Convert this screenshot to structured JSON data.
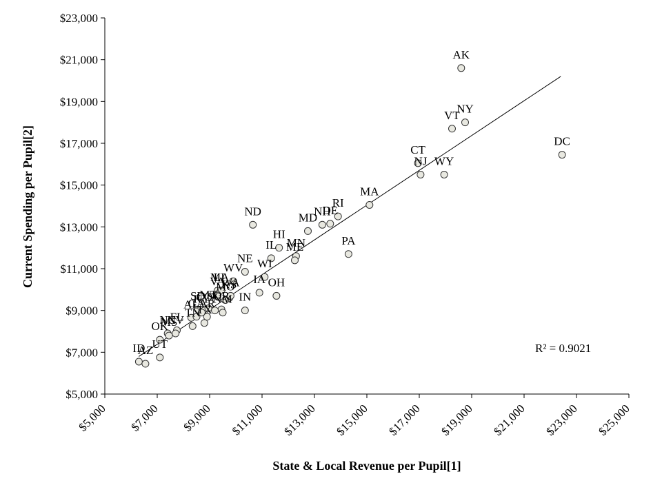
{
  "chart_data": {
    "type": "scatter",
    "title": "",
    "xlabel": "State & Local Revenue per Pupil[1]",
    "ylabel": "Current  Spending  per Pupil[2]",
    "xlim": [
      5000,
      25000
    ],
    "ylim": [
      5000,
      23000
    ],
    "x_ticks": [
      5000,
      7000,
      9000,
      11000,
      13000,
      15000,
      17000,
      19000,
      21000,
      23000,
      25000
    ],
    "x_tick_labels": [
      "$5,000",
      "$7,000",
      "$9,000",
      "$11,000",
      "$13,000",
      "$15,000",
      "$17,000",
      "$19,000",
      "$21,000",
      "$23,000",
      "$25,000"
    ],
    "y_ticks": [
      5000,
      7000,
      9000,
      11000,
      13000,
      15000,
      17000,
      19000,
      21000,
      23000
    ],
    "y_tick_labels": [
      "$5,000",
      "$7,000",
      "$9,000",
      "$11,000",
      "$13,000",
      "$15,000",
      "$17,000",
      "$19,000",
      "$21,000",
      "$23,000"
    ],
    "trendline": {
      "x": [
        6300,
        22400
      ],
      "y": [
        6800,
        20200
      ]
    },
    "r_squared_label": "R² = 0.9021",
    "points": [
      {
        "label": "AK",
        "x": 18600,
        "y": 20600
      },
      {
        "label": "NY",
        "x": 18750,
        "y": 18000
      },
      {
        "label": "VT",
        "x": 18250,
        "y": 17700
      },
      {
        "label": "DC",
        "x": 22450,
        "y": 16450
      },
      {
        "label": "CT",
        "x": 16950,
        "y": 16050
      },
      {
        "label": "NJ",
        "x": 17050,
        "y": 15500
      },
      {
        "label": "WY",
        "x": 17950,
        "y": 15500
      },
      {
        "label": "MA",
        "x": 15100,
        "y": 14050
      },
      {
        "label": "RI",
        "x": 13900,
        "y": 13500
      },
      {
        "label": "DE",
        "x": 13600,
        "y": 13150
      },
      {
        "label": "NH",
        "x": 13300,
        "y": 13100
      },
      {
        "label": "MD",
        "x": 12750,
        "y": 12800
      },
      {
        "label": "ND",
        "x": 10650,
        "y": 13100
      },
      {
        "label": "PA",
        "x": 14300,
        "y": 11700
      },
      {
        "label": "HI",
        "x": 11650,
        "y": 12000
      },
      {
        "label": "MN",
        "x": 12300,
        "y": 11600
      },
      {
        "label": "ME",
        "x": 12250,
        "y": 11400
      },
      {
        "label": "IL",
        "x": 11350,
        "y": 11500
      },
      {
        "label": "WI",
        "x": 11100,
        "y": 10600
      },
      {
        "label": "NE",
        "x": 10350,
        "y": 10850
      },
      {
        "label": "WV",
        "x": 9900,
        "y": 10400
      },
      {
        "label": "IA",
        "x": 10900,
        "y": 9850
      },
      {
        "label": "OH",
        "x": 11550,
        "y": 9700
      },
      {
        "label": "MI",
        "x": 9300,
        "y": 9950
      },
      {
        "label": "LA",
        "x": 9450,
        "y": 9950
      },
      {
        "label": "VA",
        "x": 9300,
        "y": 9750
      },
      {
        "label": "KS",
        "x": 9750,
        "y": 9600
      },
      {
        "label": "MO",
        "x": 9600,
        "y": 9500
      },
      {
        "label": "WA",
        "x": 9800,
        "y": 9700
      },
      {
        "label": "IN",
        "x": 10350,
        "y": 9000
      },
      {
        "label": "OR",
        "x": 9450,
        "y": 9050
      },
      {
        "label": "SD",
        "x": 8550,
        "y": 9050
      },
      {
        "label": "CO",
        "x": 8800,
        "y": 9000
      },
      {
        "label": "MT",
        "x": 8950,
        "y": 9100
      },
      {
        "label": "KY",
        "x": 8700,
        "y": 8900
      },
      {
        "label": "NM",
        "x": 9500,
        "y": 8900
      },
      {
        "label": "SC",
        "x": 9200,
        "y": 9000
      },
      {
        "label": "AL",
        "x": 8300,
        "y": 8650
      },
      {
        "label": "GA",
        "x": 8500,
        "y": 8700
      },
      {
        "label": "AR",
        "x": 8900,
        "y": 8700
      },
      {
        "label": "TX",
        "x": 8800,
        "y": 8400
      },
      {
        "label": "FL",
        "x": 7750,
        "y": 8050
      },
      {
        "label": "TN",
        "x": 8350,
        "y": 8250
      },
      {
        "label": "NC",
        "x": 7400,
        "y": 7900
      },
      {
        "label": "MS",
        "x": 7450,
        "y": 7800
      },
      {
        "label": "NV",
        "x": 7700,
        "y": 7900
      },
      {
        "label": "OK",
        "x": 7100,
        "y": 7600
      },
      {
        "label": "UT",
        "x": 7100,
        "y": 6750
      },
      {
        "label": "ID",
        "x": 6300,
        "y": 6550
      },
      {
        "label": "AZ",
        "x": 6550,
        "y": 6450
      }
    ]
  }
}
